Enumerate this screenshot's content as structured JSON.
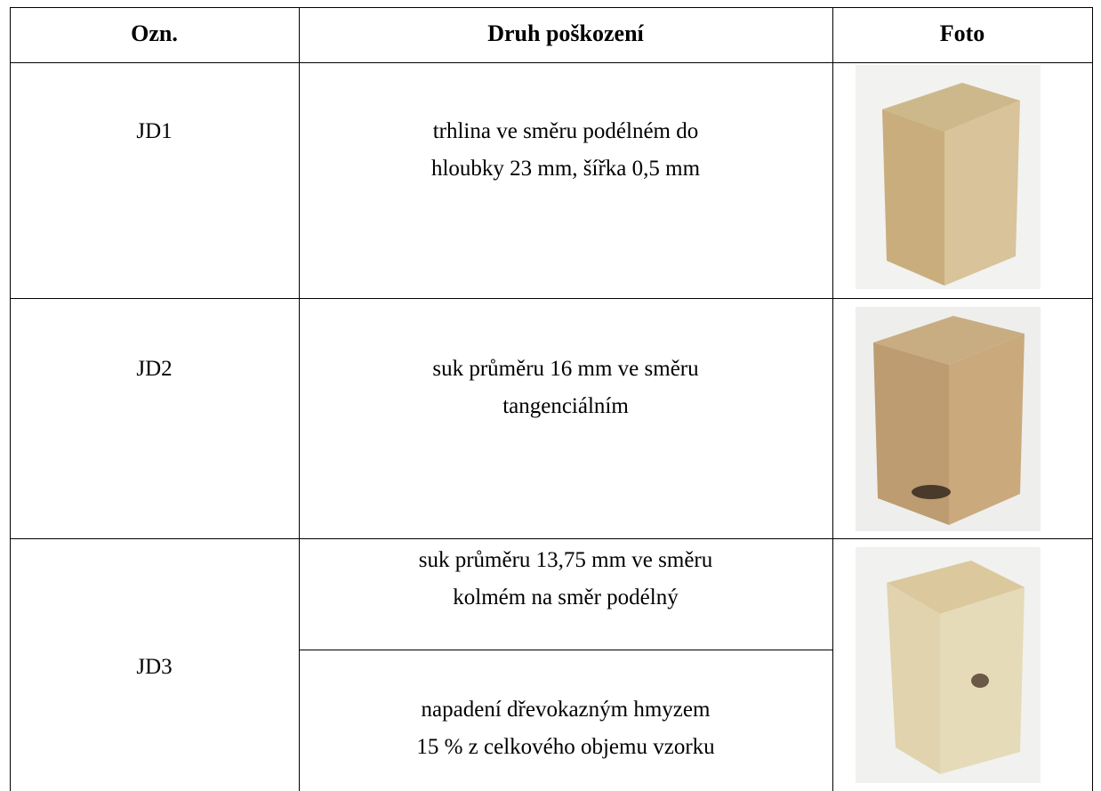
{
  "table": {
    "header": [
      "Ozn.",
      "Druh poškození",
      "Foto"
    ],
    "rows": [
      {
        "id": "JD1",
        "damage": [
          [
            "trhlina ve směru podélném do",
            "hloubky 23 mm, šířka 0,5 mm"
          ]
        ]
      },
      {
        "id": "JD2",
        "damage": [
          [
            "suk průměru 16 mm ve směru",
            "tangenciálním"
          ]
        ]
      },
      {
        "id": "JD3",
        "damage": [
          [
            "suk průměru 13,75 mm ve směru",
            "kolmém na směr podélný"
          ],
          [
            "napadení dřevokazným hmyzem",
            "15 % z celkového objemu vzorku"
          ]
        ]
      }
    ]
  }
}
